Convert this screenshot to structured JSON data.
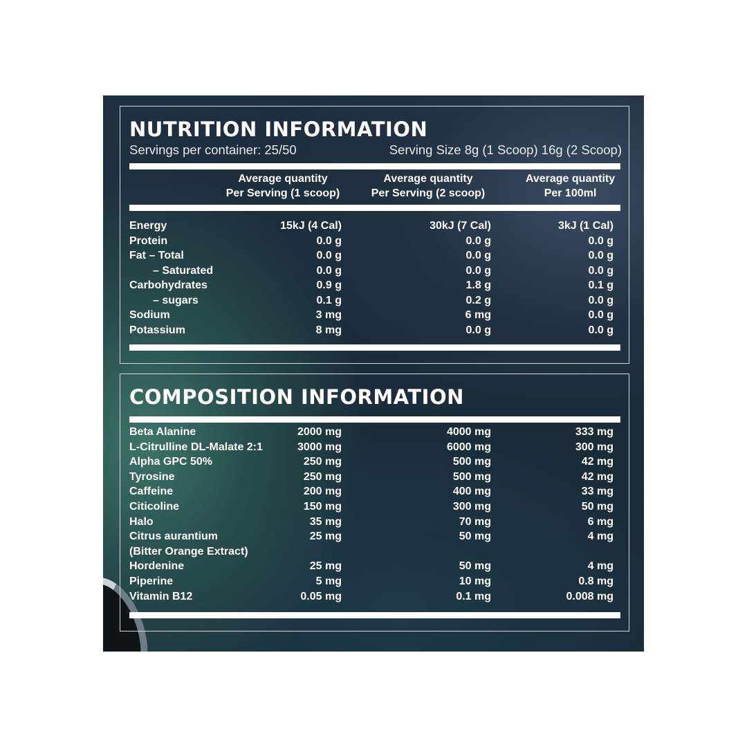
{
  "nutrition": {
    "title": "NUTRITION INFORMATION",
    "servings_per_container": "Servings per container: 25/50",
    "serving_size": "Serving Size 8g (1 Scoop) 16g (2 Scoop)",
    "columns": [
      {
        "line1": "Average quantity",
        "line2": "Per Serving (1 scoop)"
      },
      {
        "line1": "Average quantity",
        "line2": "Per Serving (2 scoop)"
      },
      {
        "line1": "Average quantity",
        "line2": "Per 100ml"
      }
    ],
    "rows": [
      {
        "name": "Energy",
        "v1": "15kJ (4 Cal)",
        "v2": "30kJ (7 Cal)",
        "v3": "3kJ (1 Cal)"
      },
      {
        "name": "Protein",
        "v1": "0.0 g",
        "v2": "0.0 g",
        "v3": "0.0 g"
      },
      {
        "name": "Fat – Total",
        "v1": "0.0 g",
        "v2": "0.0 g",
        "v3": "0.0 g"
      },
      {
        "name": "– Saturated",
        "v1": "0.0 g",
        "v2": "0.0 g",
        "v3": "0.0 g"
      },
      {
        "name": "Carbohydrates",
        "v1": "0.9 g",
        "v2": "1.8 g",
        "v3": "0.1 g"
      },
      {
        "name": "– sugars",
        "v1": "0.1 g",
        "v2": "0.2 g",
        "v3": "0.0 g"
      },
      {
        "name": "Sodium",
        "v1": "3 mg",
        "v2": "6 mg",
        "v3": "0.0 g"
      },
      {
        "name": "Potassium",
        "v1": "8 mg",
        "v2": "0.0 g",
        "v3": "0.0 g"
      }
    ]
  },
  "composition": {
    "title": "COMPOSITION INFORMATION",
    "rows": [
      {
        "name": "Beta Alanine",
        "v1": "2000 mg",
        "v2": "4000 mg",
        "v3": "333 mg"
      },
      {
        "name": "L-Citrulline DL-Malate 2:1",
        "v1": "3000 mg",
        "v2": "6000 mg",
        "v3": "300 mg"
      },
      {
        "name": "Alpha GPC 50%",
        "v1": "250 mg",
        "v2": "500 mg",
        "v3": "42 mg"
      },
      {
        "name": "Tyrosine",
        "v1": "250 mg",
        "v2": "500 mg",
        "v3": "42 mg"
      },
      {
        "name": "Caffeine",
        "v1": "200 mg",
        "v2": "400 mg",
        "v3": "33 mg"
      },
      {
        "name": "Citicoline",
        "v1": "150 mg",
        "v2": "300 mg",
        "v3": "50 mg"
      },
      {
        "name": "Halo",
        "v1": "35 mg",
        "v2": "70 mg",
        "v3": "6 mg"
      },
      {
        "name": "Citrus aurantium",
        "v1": "25 mg",
        "v2": "50 mg",
        "v3": "4 mg"
      },
      {
        "name": "(Bitter Orange Extract)",
        "v1": "",
        "v2": "",
        "v3": ""
      },
      {
        "name": "Hordenine",
        "v1": "25 mg",
        "v2": "50 mg",
        "v3": "4 mg"
      },
      {
        "name": "Piperine",
        "v1": "5 mg",
        "v2": "10 mg",
        "v3": "0.8 mg"
      },
      {
        "name": "Vitamin B12",
        "v1": "0.05 mg",
        "v2": "0.1 mg",
        "v3": "0.008 mg"
      }
    ]
  }
}
